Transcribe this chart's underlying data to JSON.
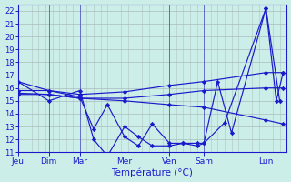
{
  "background_color": "#cceee8",
  "grid_color": "#aabbbb",
  "line_color": "#1a1acc",
  "xlabel": "Température (°C)",
  "ylim": [
    11,
    22.5
  ],
  "yticks": [
    11,
    12,
    13,
    14,
    15,
    16,
    17,
    18,
    19,
    20,
    21,
    22
  ],
  "day_labels": [
    "Jeu",
    "Dim",
    "Mar",
    "Mer",
    "Ven",
    "Sam",
    "Lun"
  ],
  "day_positions": [
    0,
    45,
    90,
    155,
    220,
    270,
    360
  ],
  "xlim": [
    0,
    390
  ],
  "series": [
    {
      "x": [
        0,
        45,
        90,
        110,
        130,
        155,
        175,
        195,
        220,
        240,
        260,
        270,
        300,
        360,
        380
      ],
      "y": [
        16.5,
        15.0,
        15.8,
        12.0,
        10.7,
        13.0,
        12.2,
        11.5,
        11.5,
        11.7,
        11.5,
        11.7,
        13.3,
        22.2,
        15.0
      ]
    },
    {
      "x": [
        0,
        45,
        90,
        155,
        220,
        270,
        360,
        385
      ],
      "y": [
        15.8,
        15.8,
        15.5,
        15.7,
        16.2,
        16.5,
        17.2,
        17.2
      ]
    },
    {
      "x": [
        0,
        45,
        90,
        155,
        220,
        270,
        360,
        385
      ],
      "y": [
        15.6,
        15.5,
        15.2,
        15.0,
        14.7,
        14.5,
        13.5,
        13.2
      ]
    },
    {
      "x": [
        0,
        45,
        90,
        155,
        220,
        270,
        360,
        385
      ],
      "y": [
        15.5,
        15.5,
        15.2,
        15.2,
        15.5,
        15.8,
        16.0,
        16.0
      ]
    },
    {
      "x": [
        0,
        45,
        90,
        110,
        130,
        155,
        175,
        195,
        220,
        240,
        260,
        270,
        290,
        310,
        360,
        375,
        385
      ],
      "y": [
        16.5,
        15.8,
        15.3,
        12.8,
        14.7,
        12.2,
        11.5,
        13.2,
        11.7,
        11.7,
        11.7,
        11.7,
        16.5,
        12.5,
        22.2,
        15.0,
        17.2
      ]
    }
  ]
}
